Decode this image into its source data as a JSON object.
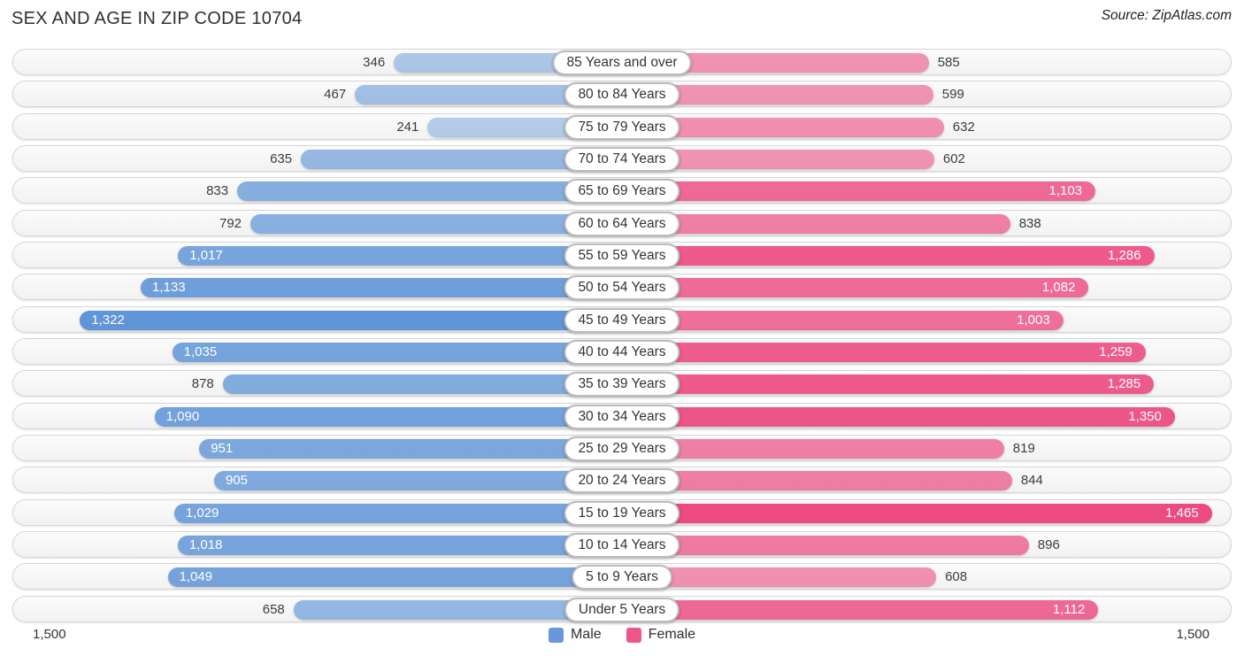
{
  "title": "SEX AND AGE IN ZIP CODE 10704",
  "source": "Source: ZipAtlas.com",
  "legend": {
    "male_label": "Male",
    "female_label": "Female"
  },
  "axis": {
    "left_label": "1,500",
    "right_label": "1,500"
  },
  "colors": {
    "male_base": "#528cd4",
    "female_base": "#eb487e",
    "male_swatch": "#6898d8",
    "female_swatch": "#ee5588",
    "track_bg": "#f6f6f6",
    "track_border": "#d6d6d6"
  },
  "chart_data": {
    "type": "bar",
    "variant": "population-pyramid",
    "title": "SEX AND AGE IN ZIP CODE 10704",
    "categories": [
      "85 Years and over",
      "80 to 84 Years",
      "75 to 79 Years",
      "70 to 74 Years",
      "65 to 69 Years",
      "60 to 64 Years",
      "55 to 59 Years",
      "50 to 54 Years",
      "45 to 49 Years",
      "40 to 44 Years",
      "35 to 39 Years",
      "30 to 34 Years",
      "25 to 29 Years",
      "20 to 24 Years",
      "15 to 19 Years",
      "10 to 14 Years",
      "5 to 9 Years",
      "Under 5 Years"
    ],
    "series": [
      {
        "name": "Male",
        "side": "left",
        "color": "#528cd4",
        "values": [
          346,
          467,
          241,
          635,
          833,
          792,
          1017,
          1133,
          1322,
          1035,
          878,
          1090,
          951,
          905,
          1029,
          1018,
          1049,
          658
        ]
      },
      {
        "name": "Female",
        "side": "right",
        "color": "#eb487e",
        "values": [
          585,
          599,
          632,
          602,
          1103,
          838,
          1286,
          1082,
          1003,
          1259,
          1285,
          1350,
          819,
          844,
          1465,
          896,
          608,
          1112
        ]
      }
    ],
    "xlim": [
      0,
      1500
    ],
    "x_axis_max_label": "1,500",
    "legend_position": "bottom",
    "grid": false,
    "value_label_rule": "label sits outside bar if value < 900, inside bar (white) if >= 900",
    "bar_opacity_rule": "bar opacity scales with value: 0.3 + 0.7 * value / 1500"
  }
}
